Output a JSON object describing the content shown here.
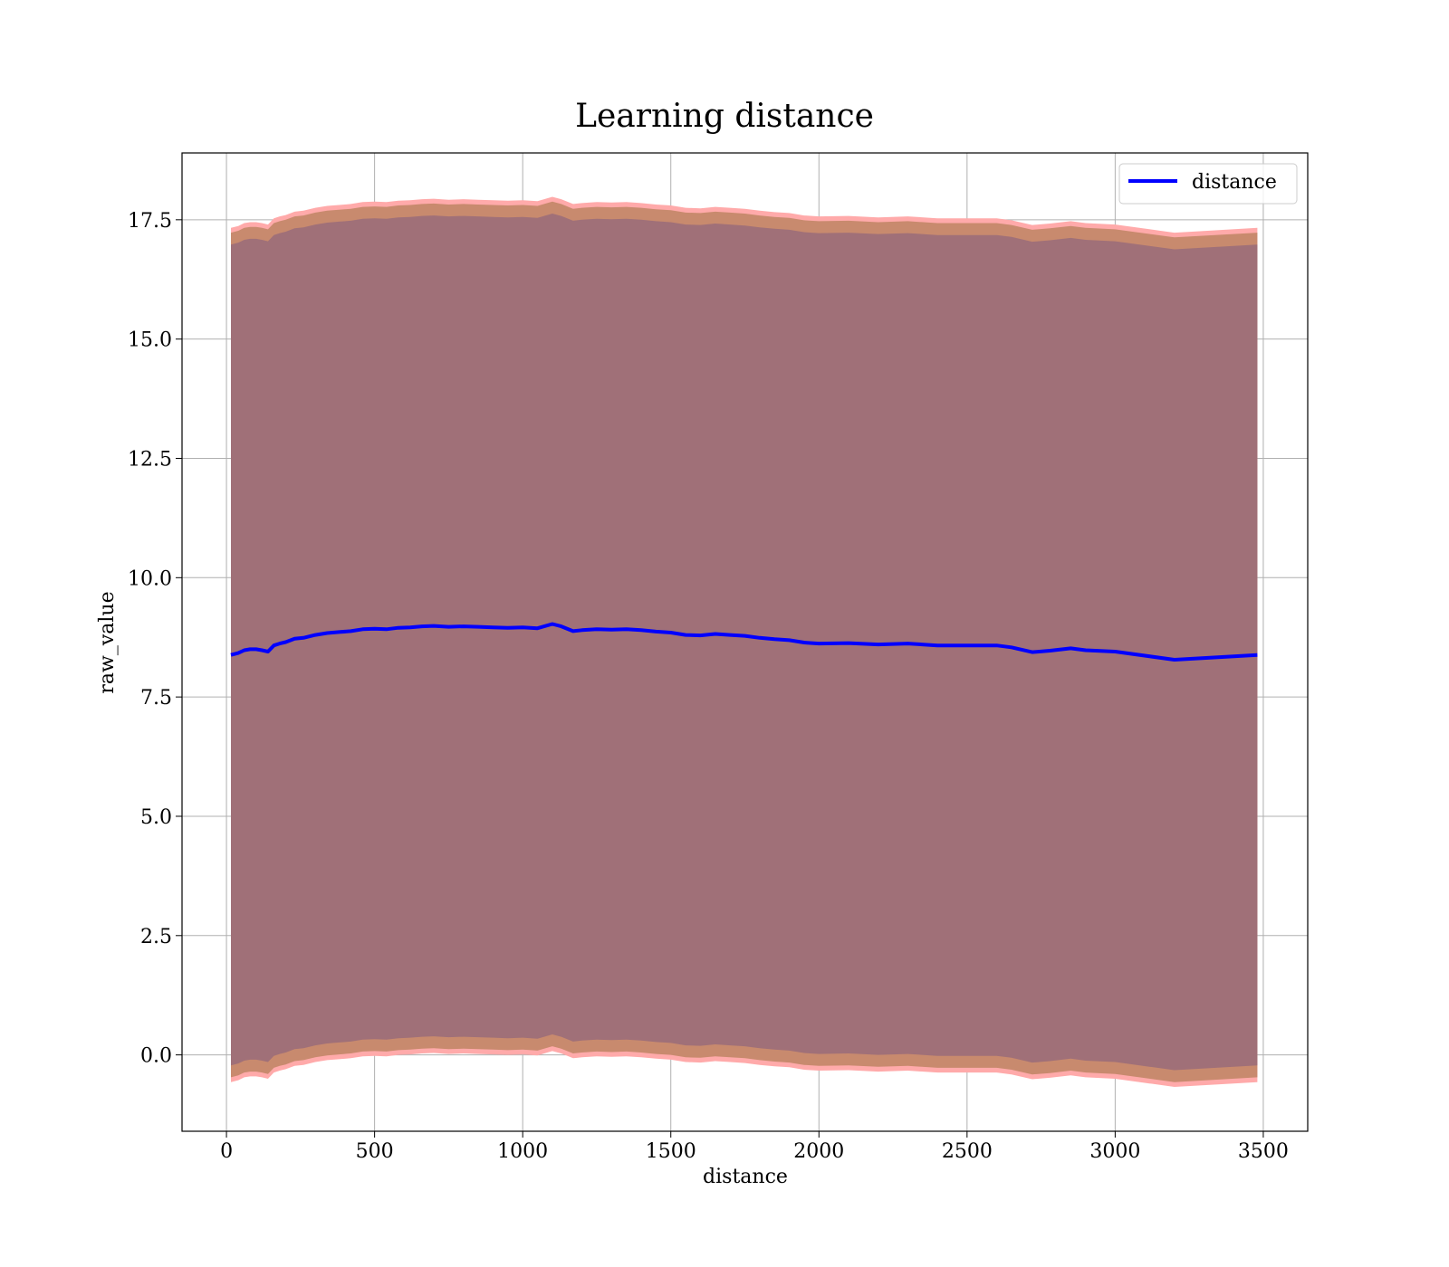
{
  "chart_data": {
    "type": "line",
    "title": "Learning distance",
    "xlabel": "distance",
    "ylabel": "raw_value",
    "xlim": [
      -150,
      3650
    ],
    "ylim": [
      -1.6,
      18.9
    ],
    "xticks": [
      0,
      500,
      1000,
      1500,
      2000,
      2500,
      3000,
      3500
    ],
    "xtick_labels": [
      "0",
      "500",
      "1000",
      "1500",
      "2000",
      "2500",
      "3000",
      "3500"
    ],
    "yticks": [
      0.0,
      2.5,
      5.0,
      7.5,
      10.0,
      12.5,
      15.0,
      17.5
    ],
    "ytick_labels": [
      "0.0",
      "2.5",
      "5.0",
      "7.5",
      "10.0",
      "12.5",
      "15.0",
      "17.5"
    ],
    "grid": true,
    "legend": {
      "position": "upper right",
      "entries": [
        "distance"
      ]
    },
    "colors": {
      "line": "#0000ff",
      "outer_band": "#ffaaaa",
      "middle_band": "#c88a6e",
      "inner_band": "#a07078"
    },
    "series": [
      {
        "name": "distance",
        "x": [
          15,
          40,
          60,
          80,
          100,
          120,
          140,
          160,
          180,
          200,
          230,
          260,
          300,
          340,
          380,
          420,
          460,
          500,
          540,
          580,
          620,
          660,
          700,
          750,
          800,
          850,
          900,
          950,
          1000,
          1050,
          1100,
          1130,
          1170,
          1200,
          1250,
          1300,
          1350,
          1400,
          1450,
          1500,
          1550,
          1600,
          1650,
          1700,
          1750,
          1800,
          1850,
          1900,
          1950,
          2000,
          2100,
          2200,
          2300,
          2400,
          2500,
          2600,
          2650,
          2720,
          2780,
          2850,
          2900,
          3000,
          3200,
          3480
        ],
        "mean": [
          8.38,
          8.42,
          8.48,
          8.5,
          8.5,
          8.48,
          8.45,
          8.58,
          8.62,
          8.65,
          8.72,
          8.74,
          8.8,
          8.84,
          8.86,
          8.88,
          8.92,
          8.93,
          8.92,
          8.95,
          8.96,
          8.98,
          8.99,
          8.97,
          8.98,
          8.97,
          8.96,
          8.95,
          8.96,
          8.94,
          9.03,
          8.98,
          8.88,
          8.9,
          8.92,
          8.91,
          8.92,
          8.9,
          8.87,
          8.85,
          8.8,
          8.79,
          8.82,
          8.8,
          8.78,
          8.74,
          8.71,
          8.69,
          8.64,
          8.62,
          8.63,
          8.6,
          8.62,
          8.58,
          8.58,
          8.58,
          8.54,
          8.44,
          8.47,
          8.52,
          8.48,
          8.45,
          8.28,
          8.38
        ],
        "outer_half_width": 8.95,
        "middle_half_width": 8.85,
        "inner_half_width": 8.6
      }
    ]
  }
}
